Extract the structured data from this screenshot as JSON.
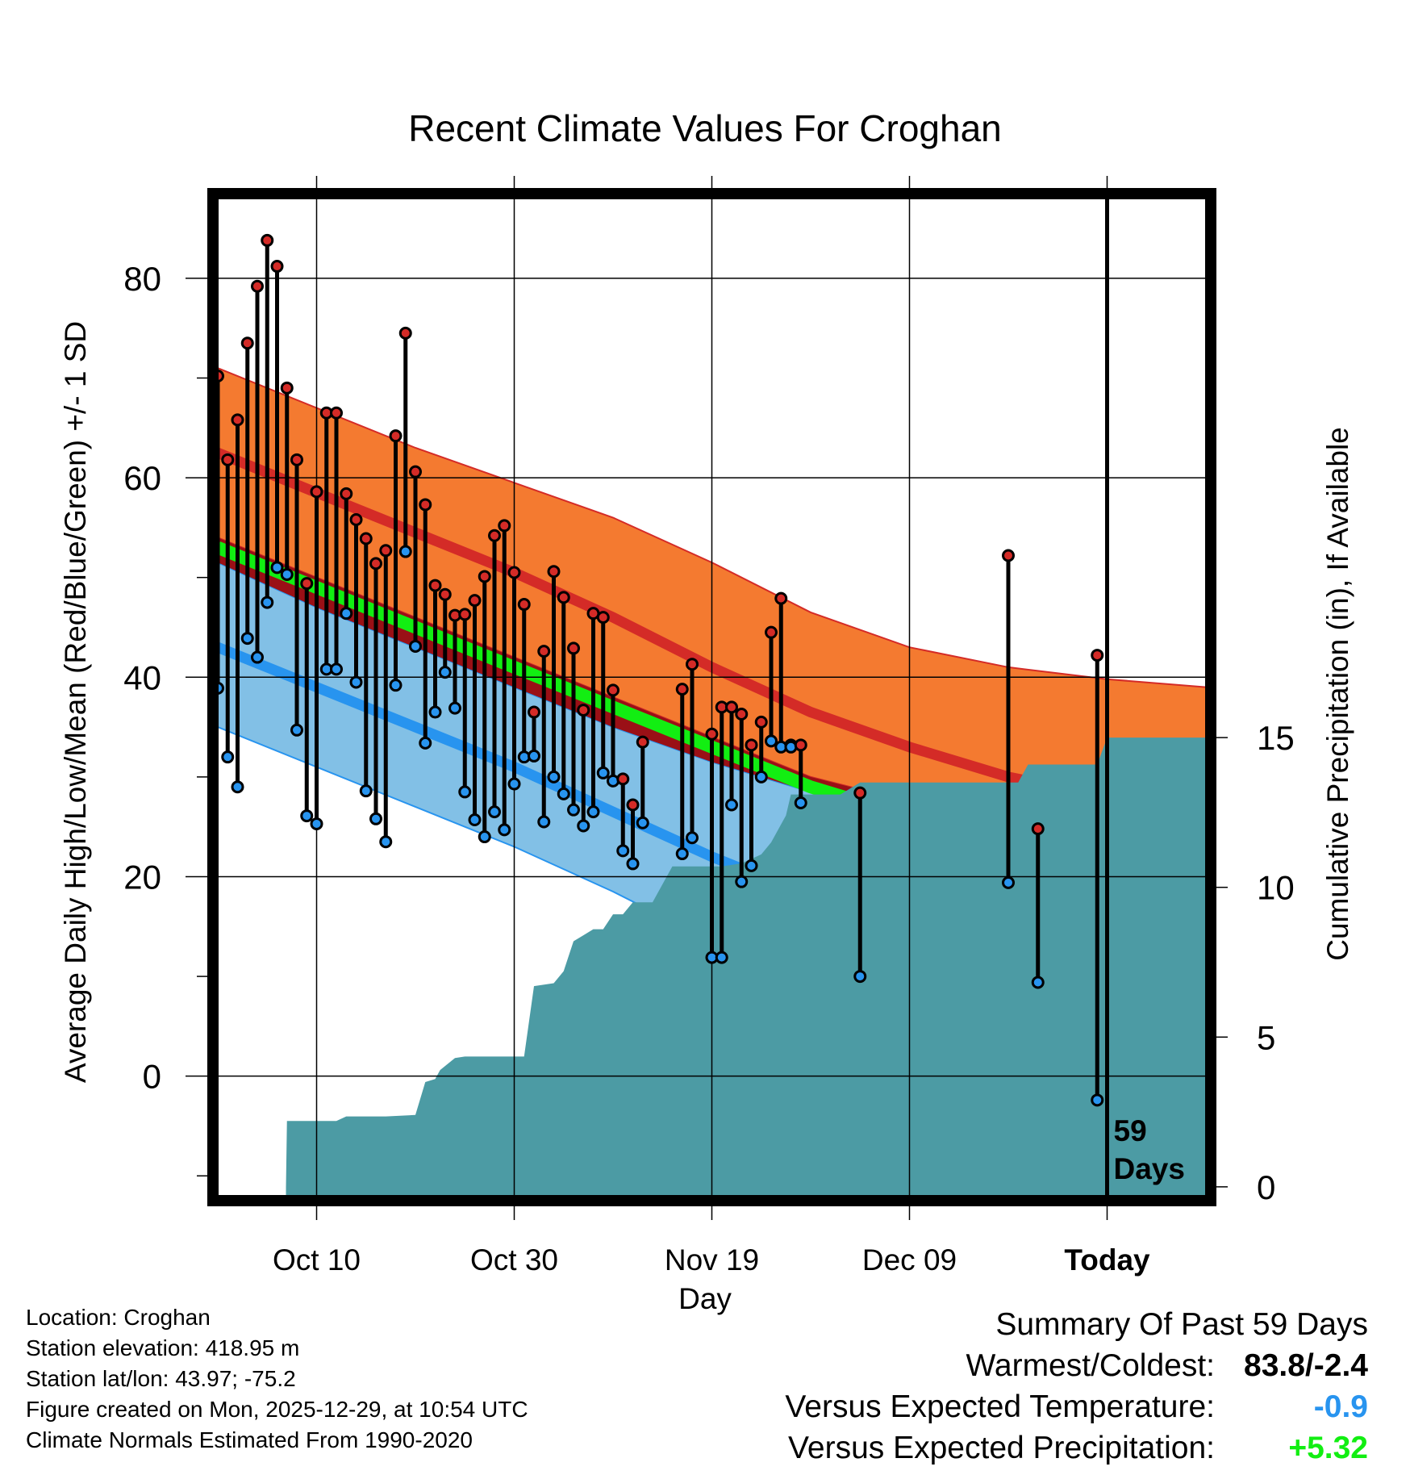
{
  "chart_data": {
    "type": "line",
    "title": "Recent Climate Values For Croghan",
    "xlabel": "Day",
    "ylabel": "Average Daily High/Low/Mean (Red/Blue/Green) +/- 1 SD",
    "y2label": "Cumulative Precipitation (in), If Available",
    "x_range_days": [
      0,
      100
    ],
    "ylim": [
      -12,
      88
    ],
    "y2lim": [
      -0.3,
      33
    ],
    "y_ticks": [
      0,
      20,
      40,
      60,
      80
    ],
    "y2_ticks": [
      0,
      5,
      10,
      15
    ],
    "x_ticks": [
      {
        "day": 10,
        "label": "Oct 10"
      },
      {
        "day": 30,
        "label": "Oct 30"
      },
      {
        "day": 50,
        "label": "Nov 19"
      },
      {
        "day": 70,
        "label": "Dec 09"
      },
      {
        "day": 90,
        "label": "Today"
      }
    ],
    "today_day": 90,
    "today_annotation": [
      "59",
      "Days"
    ],
    "normals": {
      "x": [
        0,
        10,
        20,
        30,
        40,
        50,
        60,
        70,
        80,
        90,
        100
      ],
      "high_mean": [
        62.5,
        58.5,
        54.5,
        50.5,
        46,
        41,
        36.5,
        33,
        30,
        28,
        26.5
      ],
      "high_upper": [
        71,
        67,
        63,
        59.5,
        56,
        51.5,
        46.5,
        43,
        41,
        39.8,
        39
      ],
      "high_lower": [
        54,
        50,
        46,
        42,
        38,
        34,
        30,
        27.5,
        25.5,
        24,
        24
      ],
      "low_mean": [
        43,
        39,
        35,
        31,
        26.5,
        22,
        18,
        15,
        12,
        9.5,
        7
      ],
      "low_upper": [
        51.5,
        47,
        43,
        39,
        35,
        31.5,
        28.5,
        25.5,
        23,
        21.5,
        20.5
      ],
      "low_lower": [
        35,
        31,
        27,
        23,
        18.5,
        13.5,
        8.5,
        4.5,
        1,
        -2,
        -5
      ],
      "avg_mean": [
        53,
        49,
        45,
        41,
        37,
        33,
        29,
        26,
        23.5,
        21,
        18.5
      ]
    },
    "series": [
      {
        "name": "Daily High/Low",
        "days": [
          0,
          1,
          2,
          3,
          4,
          5,
          6,
          7,
          8,
          9,
          10,
          11,
          12,
          13,
          14,
          15,
          16,
          17,
          18,
          19,
          20,
          21,
          22,
          23,
          24,
          25,
          26,
          27,
          28,
          29,
          30,
          31,
          32,
          33,
          34,
          35,
          36,
          37,
          38,
          39,
          40,
          41,
          42,
          43,
          47,
          48,
          50,
          51,
          52,
          53,
          54,
          55,
          56,
          57,
          58,
          59,
          65,
          80,
          83,
          89
        ],
        "high": [
          70.2,
          61.8,
          65.8,
          73.5,
          79.2,
          83.8,
          81.2,
          69,
          61.8,
          49.4,
          58.6,
          66.5,
          66.5,
          58.4,
          55.8,
          53.9,
          51.4,
          52.7,
          64.2,
          74.5,
          60.6,
          57.3,
          49.2,
          48.3,
          46.2,
          46.3,
          47.7,
          50.1,
          54.2,
          55.2,
          50.5,
          47.3,
          36.5,
          42.6,
          50.6,
          48,
          42.9,
          36.7,
          46.4,
          46,
          38.7,
          29.8,
          27.2,
          33.5,
          38.8,
          41.3,
          34.3,
          37,
          37,
          36.3,
          33.2,
          35.5,
          44.5,
          47.9,
          33.2,
          33.2,
          28.4,
          52.2,
          24.8,
          42.2
        ],
        "low": [
          38.9,
          32,
          29,
          43.9,
          42,
          47.5,
          51,
          50.3,
          34.7,
          26.1,
          25.3,
          40.8,
          40.8,
          46.4,
          39.5,
          28.6,
          25.8,
          23.5,
          39.2,
          52.6,
          43.1,
          33.4,
          36.5,
          40.5,
          36.9,
          28.5,
          25.7,
          24,
          26.5,
          24.7,
          29.3,
          32,
          32.1,
          25.5,
          30,
          28.3,
          26.7,
          25.1,
          26.5,
          30.4,
          29.6,
          22.6,
          21.3,
          25.4,
          22.3,
          23.9,
          11.9,
          11.9,
          27.2,
          19.5,
          21.1,
          30,
          33.6,
          33,
          33,
          27.4,
          10,
          19.4,
          9.4,
          -2.4
        ]
      },
      {
        "name": "Cumulative Precipitation",
        "x": [
          6.9,
          7,
          10,
          12,
          13,
          16,
          17,
          20,
          21,
          22,
          22.5,
          24,
          25,
          27,
          30.5,
          31,
          32,
          34,
          35,
          36,
          37,
          38,
          39,
          40,
          41,
          42,
          43,
          44,
          46,
          48,
          48.5,
          50,
          51,
          53,
          55,
          56,
          57.5,
          58,
          60,
          62,
          63,
          65,
          70,
          75,
          80,
          81,
          82,
          85,
          88,
          89,
          90,
          100
        ],
        "y": [
          0,
          2.2,
          2.2,
          2.2,
          2.35,
          2.35,
          2.35,
          2.4,
          3.5,
          3.6,
          3.9,
          4.3,
          4.35,
          4.35,
          4.35,
          4.35,
          6.7,
          6.8,
          7.2,
          8.2,
          8.4,
          8.6,
          8.6,
          9.1,
          9.1,
          9.5,
          9.5,
          9.5,
          10.7,
          10.7,
          10.7,
          10.7,
          10.7,
          10.8,
          11.1,
          11.5,
          12.4,
          13.1,
          13.1,
          13.1,
          13.1,
          13.5,
          13.5,
          13.5,
          13.5,
          13.5,
          14.1,
          14.1,
          14.1,
          14.1,
          15,
          15
        ]
      }
    ]
  },
  "info": {
    "location": "Location: Croghan",
    "elevation": "Station elevation: 418.95 m",
    "latlon": "Station lat/lon: 43.97; -75.2",
    "created": "Figure created on Mon, 2025-12-29, at 10:54 UTC",
    "normals": "Climate Normals Estimated From 1990-2020"
  },
  "summary": {
    "heading": "Summary Of Past 59 Days",
    "warm_cold_label": "Warmest/Coldest:",
    "warm_cold_value": "83.8/-2.4",
    "temp_label": "Versus Expected Temperature:",
    "temp_value": "-0.9",
    "precip_label": "Versus Expected Precipitation:",
    "precip_value": "+5.32"
  },
  "colors": {
    "high_band": "#f47a30",
    "high_mean": "#d42b27",
    "low_band": "#82c0e6",
    "low_mean": "#2894ef",
    "avg_mean": "#12ee12",
    "overlap": "#9a1016",
    "precip": "#4c9ba4",
    "high_dot": "#d42b27",
    "low_dot": "#2894ef",
    "temp_value": "#2894ef",
    "precip_value": "#12ee12"
  }
}
